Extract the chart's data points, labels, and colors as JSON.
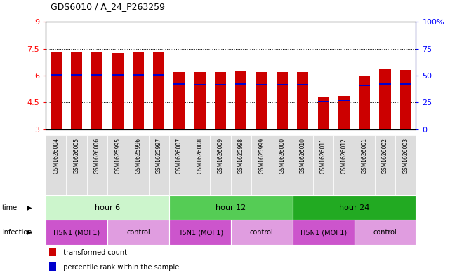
{
  "title": "GDS6010 / A_24_P263259",
  "samples": [
    "GSM1626004",
    "GSM1626005",
    "GSM1626006",
    "GSM1625995",
    "GSM1625996",
    "GSM1625997",
    "GSM1626007",
    "GSM1626008",
    "GSM1626009",
    "GSM1625998",
    "GSM1625999",
    "GSM1626000",
    "GSM1626010",
    "GSM1626011",
    "GSM1626012",
    "GSM1626001",
    "GSM1626002",
    "GSM1626003"
  ],
  "transformed_counts": [
    7.35,
    7.35,
    7.3,
    7.25,
    7.3,
    7.3,
    6.18,
    6.18,
    6.18,
    6.25,
    6.18,
    6.18,
    6.18,
    4.82,
    4.85,
    6.02,
    6.35,
    6.3
  ],
  "percentile_ranks": [
    6.05,
    6.05,
    6.05,
    6.02,
    6.04,
    6.04,
    5.55,
    5.5,
    5.5,
    5.55,
    5.5,
    5.5,
    5.5,
    4.55,
    4.6,
    5.45,
    5.55,
    5.55
  ],
  "bar_bottom": 3.0,
  "ylim_left": [
    3,
    9
  ],
  "ylim_right": [
    0,
    100
  ],
  "yticks_left": [
    3,
    4.5,
    6,
    7.5,
    9
  ],
  "yticks_right": [
    0,
    25,
    50,
    75,
    100
  ],
  "ytick_labels_left": [
    "3",
    "4.5",
    "6",
    "7.5",
    "9"
  ],
  "ytick_labels_right": [
    "0",
    "25",
    "50",
    "75",
    "100%"
  ],
  "hlines": [
    4.5,
    6.0,
    7.5
  ],
  "bar_color": "#cc0000",
  "blue_color": "#0000cc",
  "bar_width": 0.55,
  "time_groups": [
    {
      "label": "hour 6",
      "start": 0,
      "end": 6,
      "color": "#ccf5cc"
    },
    {
      "label": "hour 12",
      "start": 6,
      "end": 12,
      "color": "#55cc55"
    },
    {
      "label": "hour 24",
      "start": 12,
      "end": 18,
      "color": "#22aa22"
    }
  ],
  "infection_groups": [
    {
      "label": "H5N1 (MOI 1)",
      "start": 0,
      "end": 3,
      "color": "#cc55cc"
    },
    {
      "label": "control",
      "start": 3,
      "end": 6,
      "color": "#e09de0"
    },
    {
      "label": "H5N1 (MOI 1)",
      "start": 6,
      "end": 9,
      "color": "#cc55cc"
    },
    {
      "label": "control",
      "start": 9,
      "end": 12,
      "color": "#e09de0"
    },
    {
      "label": "H5N1 (MOI 1)",
      "start": 12,
      "end": 15,
      "color": "#cc55cc"
    },
    {
      "label": "control",
      "start": 15,
      "end": 18,
      "color": "#e09de0"
    }
  ],
  "time_label": "time",
  "infection_label": "infection",
  "legend_items": [
    {
      "label": "transformed count",
      "color": "#cc0000"
    },
    {
      "label": "percentile rank within the sample",
      "color": "#0000cc"
    }
  ],
  "xlabel_color": "#cccccc",
  "sample_box_color": "#dddddd"
}
